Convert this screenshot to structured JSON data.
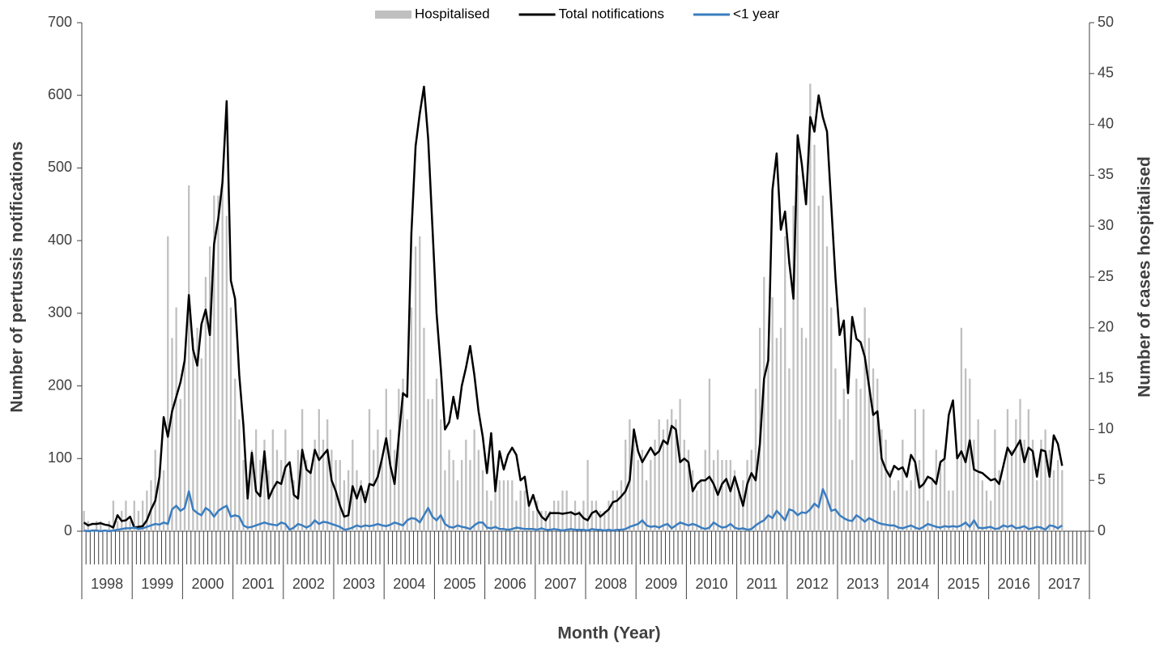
{
  "chart_data": {
    "type": "combo",
    "x_title": "Month (Year)",
    "y_title": "Number of pertussis notifications",
    "y2_title": "Number of cases hospitalised",
    "legend": "top",
    "ylim": [
      0,
      700
    ],
    "yticks": [
      0,
      100,
      200,
      300,
      400,
      500,
      600,
      700
    ],
    "y2lim": [
      0,
      50
    ],
    "y2ticks": [
      0,
      5,
      10,
      15,
      20,
      25,
      30,
      35,
      40,
      45,
      50
    ],
    "x_groups": [
      "1998",
      "1999",
      "2000",
      "2001",
      "2002",
      "2003",
      "2004",
      "2005",
      "2006",
      "2007",
      "2008",
      "2009",
      "2010",
      "2011",
      "2012",
      "2013",
      "2014",
      "2015",
      "2016",
      "2017"
    ],
    "categories": [
      null,
      null,
      null,
      null,
      null,
      null,
      null,
      null,
      null,
      null,
      null,
      null,
      null,
      null,
      null,
      null,
      null,
      null,
      null,
      null,
      null,
      null,
      null,
      null,
      null,
      null,
      null,
      null,
      null,
      null,
      null,
      null,
      null,
      null,
      null,
      null,
      null,
      null,
      null,
      null,
      null,
      null,
      null,
      null,
      null,
      null,
      null,
      null,
      null,
      null,
      null,
      null,
      null,
      null,
      null,
      null,
      null,
      null,
      null,
      null,
      null,
      null,
      null,
      null,
      null,
      null,
      null,
      null,
      null,
      null,
      null,
      null,
      null,
      null,
      null,
      null,
      null,
      null,
      null,
      null,
      null,
      null,
      null,
      null,
      null,
      null,
      null,
      null,
      null,
      null,
      null,
      null,
      null,
      null,
      null,
      null,
      null,
      null,
      null,
      null,
      null,
      null,
      null,
      null,
      null,
      null,
      null,
      null,
      null,
      null,
      null,
      null,
      null,
      null,
      null,
      null,
      null,
      null,
      null,
      null,
      null,
      null,
      null,
      null,
      null,
      null,
      null,
      null,
      null,
      null,
      null,
      null,
      null,
      null,
      null,
      null,
      null,
      null,
      null,
      null,
      null,
      null,
      null,
      null,
      null,
      null,
      null,
      null,
      null,
      null,
      null,
      null,
      null,
      null,
      null,
      null,
      null,
      null,
      null,
      null,
      null,
      null,
      null,
      null,
      null,
      null,
      null,
      null,
      null,
      null,
      null,
      null,
      null,
      null,
      null,
      null,
      null,
      null,
      null,
      null,
      null,
      null,
      null,
      null,
      null,
      null,
      null,
      null,
      null,
      null,
      null,
      null,
      null,
      null,
      null,
      null,
      null,
      null,
      null,
      null,
      null,
      null,
      null,
      null,
      null,
      null,
      null,
      null,
      null,
      null,
      null,
      null,
      null,
      null,
      null,
      null,
      null,
      null,
      null,
      null,
      null,
      null,
      null,
      null,
      null,
      null,
      null,
      null,
      null,
      null,
      null,
      null,
      null,
      null,
      null,
      null,
      null,
      null,
      null,
      null
    ],
    "series": [
      {
        "name": "Hospitalised",
        "type": "bar",
        "axis": "y2",
        "color": "#c0c0c0",
        "values": [
          2,
          1,
          0,
          1,
          1,
          0,
          1,
          3,
          1,
          2,
          3,
          1,
          3,
          2,
          3,
          4,
          5,
          8,
          5,
          6,
          29,
          19,
          22,
          13,
          17,
          34,
          19,
          20,
          17,
          25,
          28,
          33,
          33,
          34,
          31,
          22,
          15,
          11,
          7,
          5,
          8,
          10,
          7,
          9,
          6,
          10,
          8,
          7,
          10,
          6,
          5,
          8,
          12,
          7,
          6,
          9,
          12,
          9,
          11,
          8,
          7,
          7,
          5,
          6,
          9,
          6,
          5,
          4,
          12,
          8,
          10,
          7,
          14,
          10,
          8,
          14,
          15,
          11,
          22,
          28,
          29,
          20,
          13,
          13,
          15,
          11,
          6,
          8,
          7,
          5,
          7,
          9,
          7,
          10,
          8,
          6,
          4,
          3,
          4,
          5,
          5,
          5,
          5,
          3,
          4,
          4,
          3,
          2,
          3,
          2,
          2,
          2,
          3,
          3,
          4,
          4,
          2,
          3,
          2,
          3,
          7,
          3,
          3,
          2,
          2,
          3,
          4,
          4,
          5,
          9,
          11,
          9,
          7,
          8,
          5,
          7,
          9,
          11,
          10,
          11,
          12,
          11,
          13,
          9,
          8,
          6,
          4,
          5,
          8,
          15,
          7,
          8,
          7,
          7,
          7,
          6,
          4,
          5,
          7,
          8,
          14,
          20,
          25,
          18,
          23,
          19,
          20,
          29,
          16,
          32,
          35,
          20,
          19,
          44,
          38,
          32,
          33,
          28,
          22,
          16,
          11,
          14,
          13,
          7,
          15,
          14,
          22,
          19,
          16,
          15,
          10,
          9,
          6,
          4,
          5,
          9,
          4,
          5,
          12,
          7,
          12,
          3,
          5,
          8,
          7,
          8,
          4,
          4,
          7,
          20,
          16,
          15,
          9,
          11,
          5,
          4,
          3,
          10,
          6,
          5,
          12,
          8,
          11,
          13,
          9,
          12,
          9,
          5,
          9,
          10,
          8,
          6,
          7,
          6,
          null,
          null,
          null,
          null,
          null,
          null
        ]
      },
      {
        "name": "Total notifications",
        "type": "line",
        "axis": "y",
        "color": "#000000",
        "values": [
          12,
          8,
          10,
          10,
          11,
          9,
          8,
          5,
          22,
          14,
          15,
          20,
          5,
          6,
          7,
          15,
          30,
          42,
          75,
          157,
          130,
          165,
          185,
          205,
          235,
          325,
          250,
          228,
          285,
          305,
          270,
          395,
          430,
          480,
          592,
          345,
          320,
          215,
          145,
          45,
          108,
          55,
          48,
          110,
          45,
          58,
          68,
          65,
          88,
          95,
          50,
          45,
          112,
          85,
          80,
          112,
          98,
          105,
          112,
          70,
          55,
          35,
          20,
          22,
          62,
          45,
          62,
          40,
          65,
          63,
          75,
          100,
          128,
          90,
          65,
          130,
          190,
          185,
          410,
          530,
          575,
          612,
          540,
          420,
          300,
          225,
          140,
          150,
          185,
          155,
          200,
          225,
          255,
          215,
          165,
          130,
          80,
          135,
          55,
          110,
          85,
          105,
          115,
          105,
          70,
          75,
          35,
          50,
          30,
          20,
          15,
          25,
          25,
          25,
          24,
          25,
          26,
          23,
          25,
          18,
          15,
          25,
          28,
          20,
          25,
          30,
          40,
          42,
          48,
          55,
          70,
          140,
          110,
          95,
          105,
          115,
          105,
          110,
          125,
          120,
          145,
          140,
          95,
          100,
          95,
          55,
          65,
          70,
          70,
          75,
          65,
          50,
          65,
          72,
          55,
          75,
          55,
          35,
          65,
          80,
          70,
          120,
          210,
          235,
          470,
          520,
          415,
          440,
          370,
          320,
          545,
          505,
          450,
          570,
          550,
          600,
          570,
          550,
          450,
          350,
          270,
          290,
          190,
          295,
          265,
          260,
          240,
          200,
          160,
          165,
          100,
          85,
          75,
          90,
          85,
          88,
          75,
          105,
          95,
          60,
          65,
          75,
          72,
          65,
          95,
          100,
          160,
          180,
          100,
          110,
          95,
          125,
          85,
          82,
          80,
          75,
          70,
          72,
          65,
          90,
          115,
          105,
          115,
          125,
          95,
          115,
          110,
          75,
          112,
          110,
          75,
          132,
          120,
          90,
          null,
          null,
          null,
          null,
          null,
          null
        ]
      },
      {
        "name": "<1 year",
        "type": "line",
        "axis": "y",
        "color": "#3a7dc0",
        "values": [
          1,
          0,
          1,
          1,
          0,
          1,
          0,
          1,
          2,
          3,
          4,
          4,
          5,
          3,
          4,
          6,
          8,
          10,
          9,
          12,
          10,
          30,
          35,
          28,
          32,
          55,
          30,
          25,
          22,
          32,
          28,
          20,
          28,
          32,
          35,
          20,
          22,
          20,
          8,
          5,
          6,
          8,
          10,
          12,
          10,
          9,
          8,
          12,
          10,
          2,
          5,
          10,
          8,
          5,
          8,
          15,
          10,
          13,
          12,
          10,
          8,
          6,
          2,
          3,
          5,
          8,
          6,
          8,
          7,
          8,
          10,
          8,
          7,
          9,
          12,
          10,
          8,
          15,
          18,
          17,
          12,
          22,
          32,
          20,
          15,
          22,
          10,
          6,
          5,
          8,
          6,
          5,
          3,
          8,
          12,
          12,
          5,
          4,
          6,
          3,
          3,
          2,
          3,
          5,
          4,
          3,
          3,
          3,
          2,
          4,
          2,
          2,
          3,
          2,
          1,
          2,
          3,
          2,
          2,
          2,
          1,
          3,
          2,
          2,
          1,
          2,
          1,
          2,
          2,
          3,
          6,
          8,
          10,
          15,
          8,
          6,
          7,
          5,
          8,
          10,
          4,
          8,
          12,
          10,
          8,
          10,
          8,
          5,
          3,
          5,
          12,
          8,
          5,
          6,
          10,
          5,
          3,
          4,
          2,
          3,
          8,
          12,
          15,
          22,
          18,
          28,
          22,
          15,
          30,
          28,
          22,
          26,
          25,
          30,
          38,
          33,
          58,
          45,
          28,
          30,
          22,
          18,
          15,
          14,
          22,
          18,
          13,
          18,
          15,
          12,
          10,
          9,
          8,
          8,
          5,
          4,
          6,
          8,
          5,
          3,
          6,
          10,
          8,
          6,
          5,
          7,
          6,
          7,
          6,
          8,
          12,
          6,
          15,
          5,
          4,
          5,
          6,
          3,
          4,
          8,
          6,
          8,
          4,
          5,
          7,
          3,
          4,
          6,
          5,
          2,
          8,
          7,
          4,
          8,
          null,
          null,
          null,
          null,
          null,
          null
        ]
      }
    ]
  }
}
